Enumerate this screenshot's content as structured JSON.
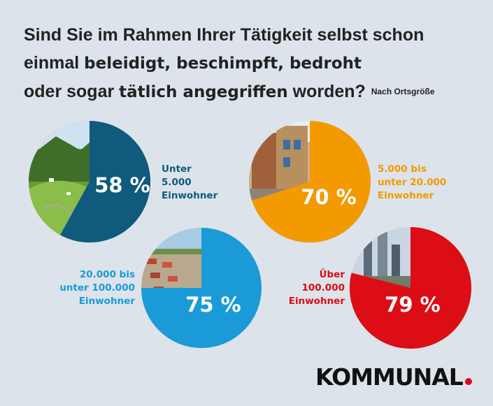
{
  "title": {
    "line1": "Sind Sie im Rahmen Ihrer Tätigkeit selbst schon",
    "line2_a": "einmal ",
    "line2_b": "beleidigt, beschimpft, bedroht",
    "line3_a": "oder sogar ",
    "line3_b": "tätlich angegriffen",
    "line3_c": " worden?",
    "note": "Nach Ortsgröße"
  },
  "chart_data": {
    "type": "pie",
    "pies": [
      {
        "label_lines": [
          "Unter",
          "5.000",
          "Einwohner"
        ],
        "value": 58,
        "value_label": "58 %",
        "color": "#0f5a7d",
        "photo": "alpine-village-photo"
      },
      {
        "label_lines": [
          "5.000 bis",
          "unter 20.000",
          "Einwohner"
        ],
        "value": 70,
        "value_label": "70 %",
        "color": "#f29a00",
        "photo": "old-town-street-photo"
      },
      {
        "label_lines": [
          "20.000 bis",
          "unter 100.000",
          "Einwohner"
        ],
        "value": 75,
        "value_label": "75 %",
        "color": "#1a9bd7",
        "photo": "town-aerial-photo"
      },
      {
        "label_lines": [
          "Über",
          "100.000",
          "Einwohner"
        ],
        "value": 79,
        "value_label": "79 %",
        "color": "#dc0d15",
        "photo": "city-skyline-photo"
      }
    ]
  },
  "brand": {
    "name": "KOMMUNAL",
    "dot_color": "#e2001a"
  }
}
